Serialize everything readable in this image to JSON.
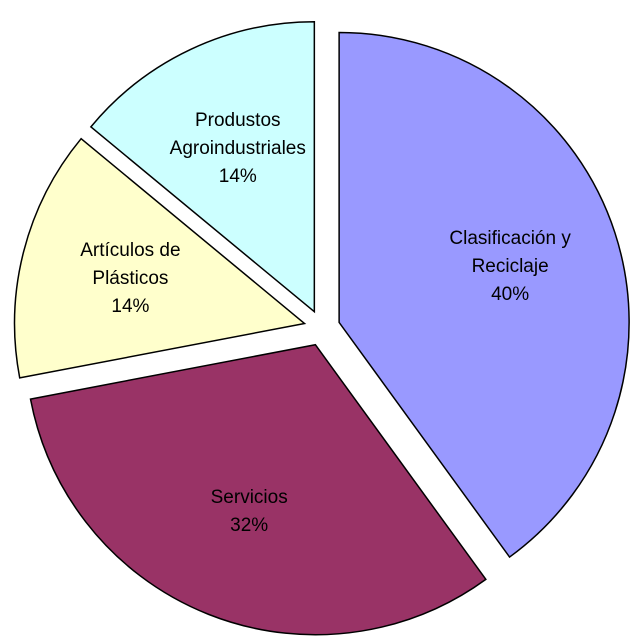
{
  "chart_data": {
    "type": "pie",
    "categories": [
      "Clasificación y Reciclaje",
      "Servicios",
      "Artículos de Plásticos",
      "Produstos Agroindustriales"
    ],
    "values": [
      40,
      32,
      14,
      14
    ],
    "value_labels": [
      "40%",
      "32%",
      "14%",
      "14%"
    ],
    "colors": [
      "#9999ff",
      "#993366",
      "#ffffcc",
      "#ccffff"
    ]
  }
}
